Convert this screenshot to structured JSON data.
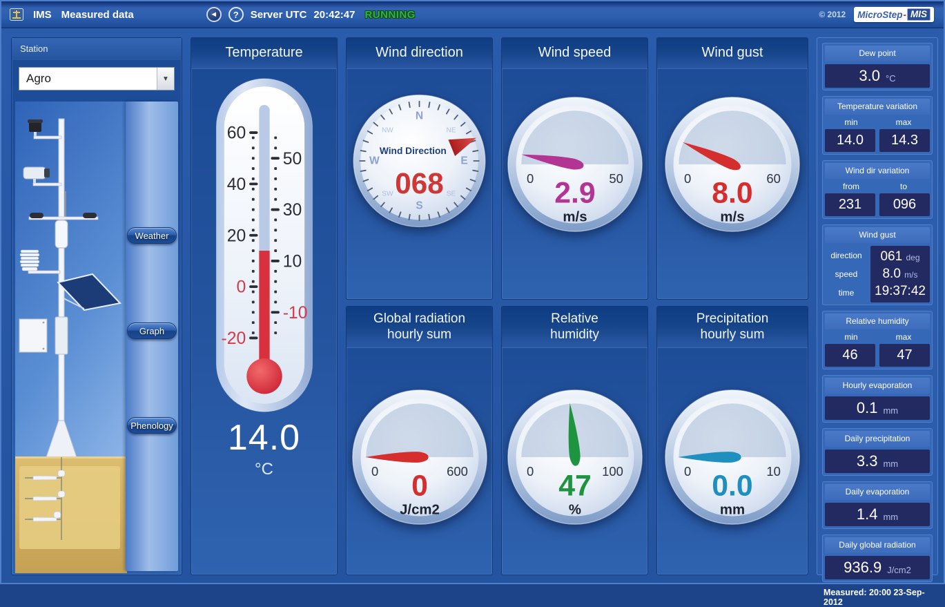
{
  "header": {
    "app_name": "IMS",
    "title": "Measured data",
    "server_label": "Server UTC",
    "server_time": "20:42:47",
    "status": "RUNNING",
    "back_glyph": "◄",
    "help_glyph": "?",
    "copyright": "© 2012",
    "brand_name": "MicroStep",
    "brand_dash": "-",
    "brand_suffix": "MIS",
    "status_color": "#33b342"
  },
  "station_panel": {
    "label": "Station",
    "selected_station": "Agro",
    "dropdown_glyph": "▼",
    "buttons": [
      {
        "label": "Weather"
      },
      {
        "label": "Graph"
      },
      {
        "label": "Phenology"
      }
    ]
  },
  "temperature_panel": {
    "title": "Temperature",
    "value": 14.0,
    "display": "14.0",
    "unit": "°C",
    "scale_left": [
      "60",
      "40",
      "20",
      "0",
      "-20"
    ],
    "scale_right": [
      "50",
      "30",
      "10",
      "-10"
    ],
    "scale_min": -20,
    "scale_max": 60
  },
  "gauges": {
    "wind_direction": {
      "title": "Wind direction",
      "face_label": "Wind Direction",
      "value": 68,
      "display": "068",
      "cardinals": [
        "N",
        "NE",
        "E",
        "SE",
        "S",
        "SW",
        "W",
        "NW"
      ],
      "color": "#cf3636"
    },
    "wind_speed": {
      "title": "Wind speed",
      "min": 0,
      "max": 50,
      "min_label": "0",
      "max_label": "50",
      "value": 2.9,
      "display": "2.9",
      "unit": "m/s",
      "color": "#b23593"
    },
    "wind_gust": {
      "title": "Wind gust",
      "min": 0,
      "max": 60,
      "min_label": "0",
      "max_label": "60",
      "value": 8.0,
      "display": "8.0",
      "unit": "m/s",
      "color": "#d42e2e"
    },
    "global_radiation": {
      "title_line1": "Global radiation",
      "title_line2": "hourly sum",
      "min": 0,
      "max": 600,
      "min_label": "0",
      "max_label": "600",
      "value": 0,
      "display": "0",
      "unit": "J/cm2",
      "color": "#d42e2e"
    },
    "relative_humidity": {
      "title_line1": "Relative",
      "title_line2": "humidity",
      "min": 0,
      "max": 100,
      "min_label": "0",
      "max_label": "100",
      "value": 47,
      "display": "47",
      "unit": "%",
      "color": "#1f9440"
    },
    "precipitation": {
      "title_line1": "Precipitation",
      "title_line2": "hourly sum",
      "min": 0,
      "max": 10,
      "min_label": "0",
      "max_label": "10",
      "value": 0,
      "display": "0.0",
      "unit": "mm",
      "color": "#1f8fc0"
    }
  },
  "sidebar": {
    "sections": [
      {
        "title": "Dew point",
        "value": "3.0",
        "unit": "°C"
      },
      {
        "title": "Temperature variation",
        "l1": "min",
        "l2": "max",
        "v1": "14.0",
        "v2": "14.3"
      },
      {
        "title": "Wind dir variation",
        "l1": "from",
        "l2": "to",
        "v1": "231",
        "v2": "096"
      },
      {
        "title": "Wind gust",
        "r1_label": "direction",
        "r1_value": "061",
        "r1_unit": "deg",
        "r2_label": "speed",
        "r2_value": "8.0",
        "r2_unit": "m/s",
        "r3_label": "time",
        "r3_value": "19:37:42",
        "r3_unit": ""
      },
      {
        "title": "Relative humidity",
        "l1": "min",
        "l2": "max",
        "v1": "46",
        "v2": "47"
      },
      {
        "title": "Hourly evaporation",
        "value": "0.1",
        "unit": "mm"
      },
      {
        "title": "Daily precipitation",
        "value": "3.3",
        "unit": "mm"
      },
      {
        "title": "Daily evaporation",
        "value": "1.4",
        "unit": "mm"
      },
      {
        "title": "Daily global radiation",
        "value": "936.9",
        "unit": "J/cm2"
      }
    ],
    "footer": {
      "label": "Measured:",
      "value": "20:00 23-Sep-2012"
    }
  }
}
